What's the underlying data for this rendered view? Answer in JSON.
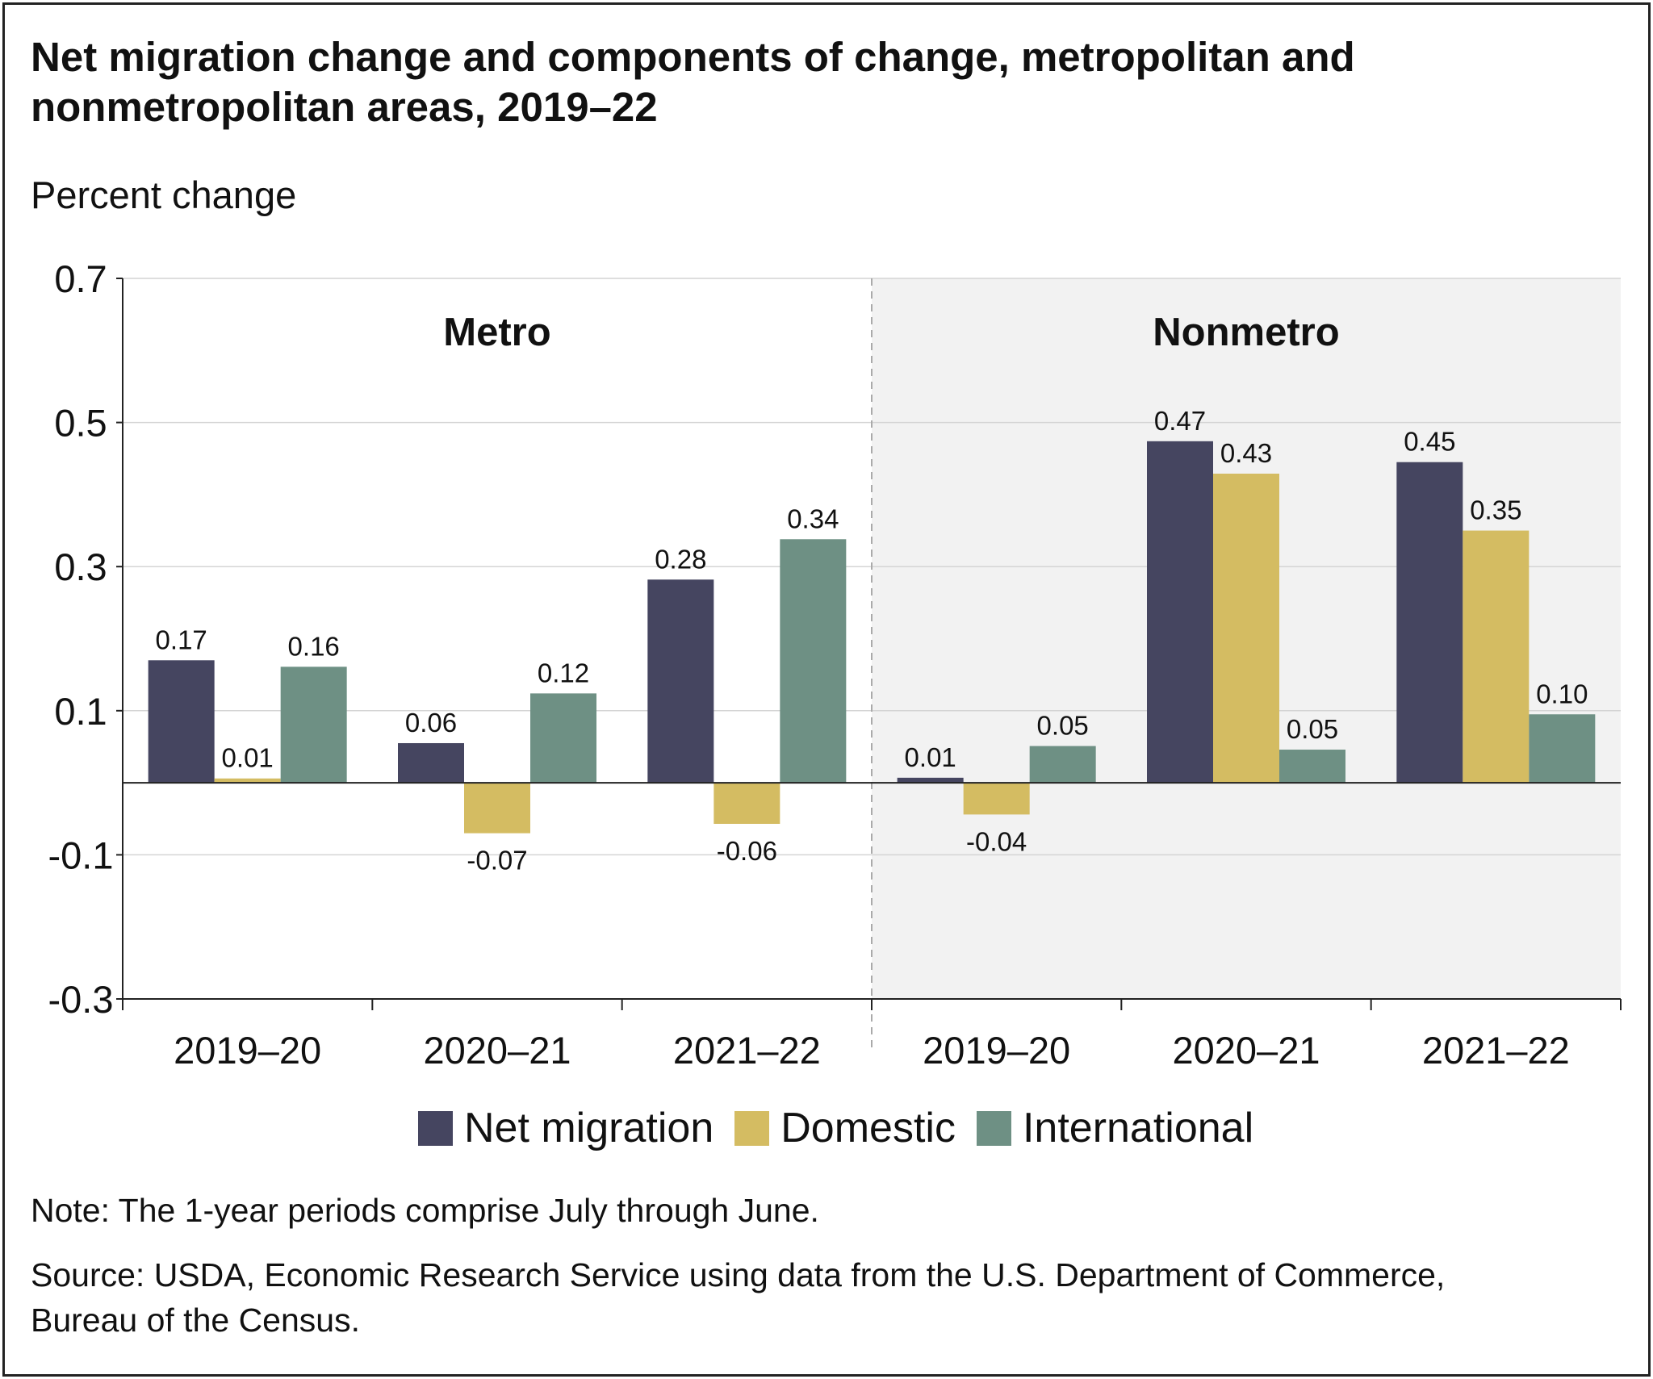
{
  "title": "Net migration change and components of change, metropolitan and nonmetropolitan areas, 2019–22",
  "unit_label": "Percent change",
  "note": "Note: The 1-year periods comprise July through June.",
  "source": "Source: USDA, Economic Research Service using data from the U.S. Department of Commerce, Bureau of the Census.",
  "colors": {
    "net_migration": "#454560",
    "domestic": "#d4bc62",
    "international": "#6e9084",
    "nonmetro_background": "#f2f2f2",
    "gridline": "#d4d4d4",
    "axis": "#222222"
  },
  "chart_data": {
    "type": "bar",
    "ylim": [
      -0.3,
      0.7
    ],
    "yticks": [
      -0.3,
      -0.1,
      0.1,
      0.3,
      0.5,
      0.7
    ],
    "ytick_labels": [
      "-0.3",
      "-0.1",
      "0.1",
      "0.3",
      "0.5",
      "0.7"
    ],
    "grid": true,
    "legend_position": "bottom",
    "groups": [
      {
        "name": "Metro",
        "categories": [
          "2019–20",
          "2020–21",
          "2021–22"
        ],
        "shaded": false,
        "series": [
          {
            "name": "Net migration",
            "values": [
              0.17,
              0.055,
              0.282
            ],
            "labels": [
              "0.17",
              "0.06",
              "0.28"
            ]
          },
          {
            "name": "Domestic",
            "values": [
              0.006,
              -0.07,
              -0.057
            ],
            "labels": [
              "0.01",
              "-0.07",
              "-0.06"
            ]
          },
          {
            "name": "International",
            "values": [
              0.161,
              0.124,
              0.338
            ],
            "labels": [
              "0.16",
              "0.12",
              "0.34"
            ]
          }
        ]
      },
      {
        "name": "Nonmetro",
        "categories": [
          "2019–20",
          "2020–21",
          "2021–22"
        ],
        "shaded": true,
        "series": [
          {
            "name": "Net migration",
            "values": [
              0.007,
              0.474,
              0.445
            ],
            "labels": [
              "0.01",
              "0.47",
              "0.45"
            ]
          },
          {
            "name": "Domestic",
            "values": [
              -0.044,
              0.429,
              0.35
            ],
            "labels": [
              "-0.04",
              "0.43",
              "0.35"
            ]
          },
          {
            "name": "International",
            "values": [
              0.051,
              0.046,
              0.095
            ],
            "labels": [
              "0.05",
              "0.05",
              "0.10"
            ]
          }
        ]
      }
    ],
    "legend": [
      "Net migration",
      "Domestic",
      "International"
    ]
  }
}
